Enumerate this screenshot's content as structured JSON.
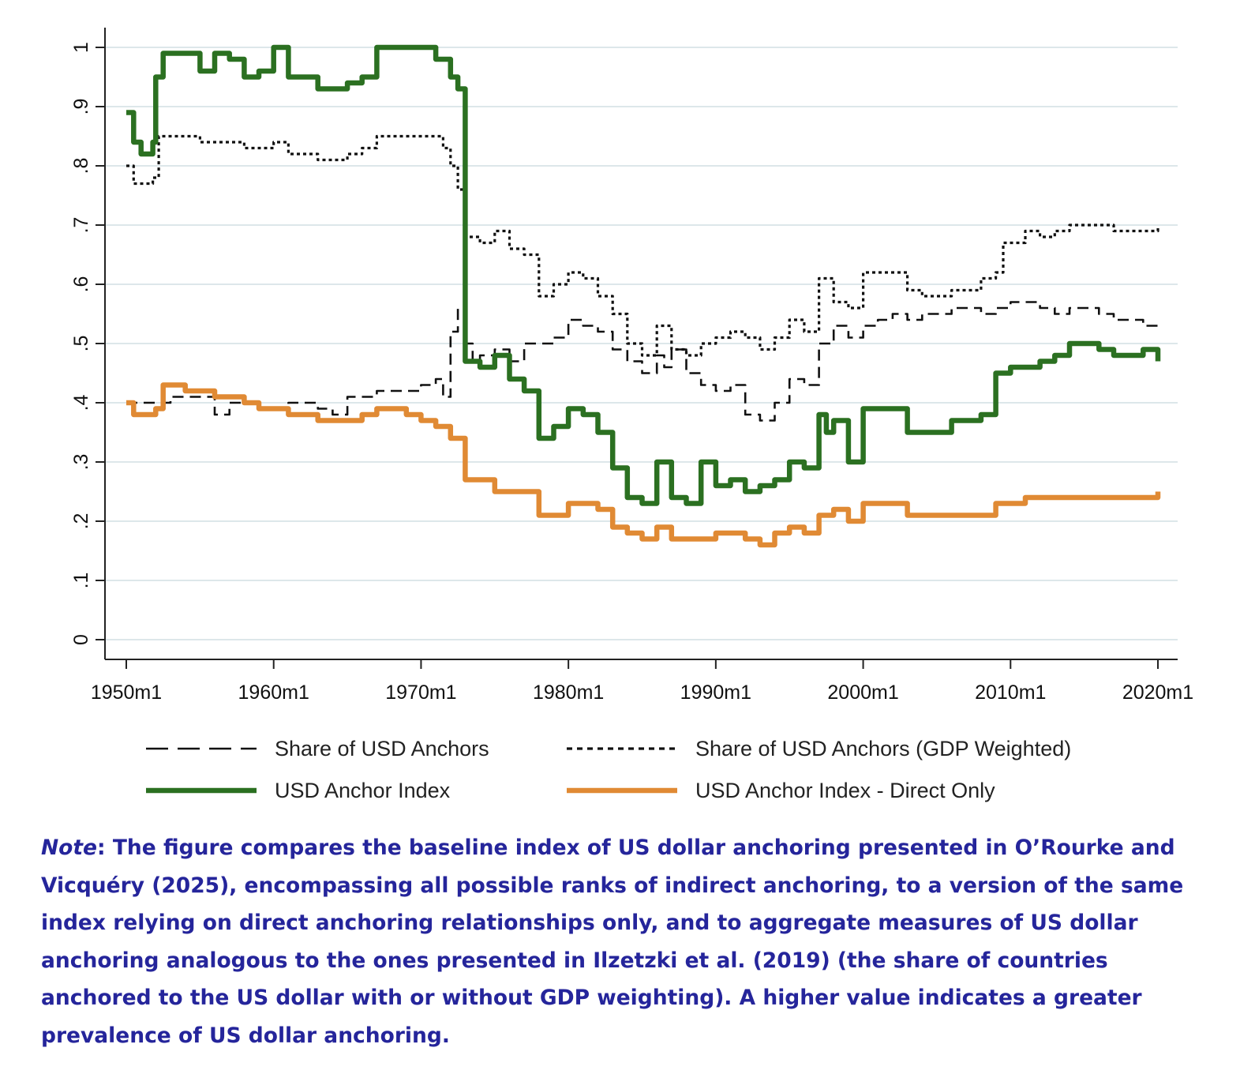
{
  "chart_data": {
    "type": "line",
    "xlim": [
      1950,
      2020
    ],
    "ylim": [
      0,
      1
    ],
    "grid": true,
    "legend_position": "bottom",
    "x_ticks": [
      {
        "value": 1950,
        "label": "1950m1"
      },
      {
        "value": 1960,
        "label": "1960m1"
      },
      {
        "value": 1970,
        "label": "1970m1"
      },
      {
        "value": 1980,
        "label": "1980m1"
      },
      {
        "value": 1990,
        "label": "1990m1"
      },
      {
        "value": 2000,
        "label": "2000m1"
      },
      {
        "value": 2010,
        "label": "2010m1"
      },
      {
        "value": 2020,
        "label": "2020m1"
      }
    ],
    "y_ticks": [
      {
        "value": 0,
        "label": "0"
      },
      {
        "value": 0.1,
        "label": ".1"
      },
      {
        "value": 0.2,
        "label": ".2"
      },
      {
        "value": 0.3,
        "label": ".3"
      },
      {
        "value": 0.4,
        "label": ".4"
      },
      {
        "value": 0.5,
        "label": ".5"
      },
      {
        "value": 0.6,
        "label": ".6"
      },
      {
        "value": 0.7,
        "label": ".7"
      },
      {
        "value": 0.8,
        "label": ".8"
      },
      {
        "value": 0.9,
        "label": ".9"
      },
      {
        "value": 1,
        "label": "1"
      }
    ],
    "series": [
      {
        "name": "Share of USD Anchors",
        "style": "dashed",
        "color": "#111111",
        "points": [
          [
            1950,
            0.4
          ],
          [
            1952,
            0.4
          ],
          [
            1953,
            0.41
          ],
          [
            1955,
            0.41
          ],
          [
            1956,
            0.38
          ],
          [
            1957,
            0.4
          ],
          [
            1959,
            0.39
          ],
          [
            1961,
            0.4
          ],
          [
            1963,
            0.39
          ],
          [
            1964,
            0.38
          ],
          [
            1965,
            0.41
          ],
          [
            1966,
            0.41
          ],
          [
            1967,
            0.42
          ],
          [
            1969,
            0.42
          ],
          [
            1970,
            0.43
          ],
          [
            1971,
            0.44
          ],
          [
            1971.5,
            0.41
          ],
          [
            1972,
            0.52
          ],
          [
            1972.5,
            0.56
          ],
          [
            1973,
            0.5
          ],
          [
            1973.5,
            0.47
          ],
          [
            1974,
            0.48
          ],
          [
            1975,
            0.49
          ],
          [
            1976,
            0.47
          ],
          [
            1977,
            0.5
          ],
          [
            1978,
            0.5
          ],
          [
            1979,
            0.51
          ],
          [
            1980,
            0.54
          ],
          [
            1981,
            0.53
          ],
          [
            1982,
            0.52
          ],
          [
            1983,
            0.49
          ],
          [
            1984,
            0.47
          ],
          [
            1985,
            0.45
          ],
          [
            1986,
            0.48
          ],
          [
            1986.5,
            0.46
          ],
          [
            1987,
            0.49
          ],
          [
            1988,
            0.45
          ],
          [
            1989,
            0.43
          ],
          [
            1990,
            0.42
          ],
          [
            1991,
            0.43
          ],
          [
            1992,
            0.38
          ],
          [
            1993,
            0.37
          ],
          [
            1994,
            0.4
          ],
          [
            1995,
            0.44
          ],
          [
            1996,
            0.43
          ],
          [
            1997,
            0.5
          ],
          [
            1998,
            0.53
          ],
          [
            1999,
            0.51
          ],
          [
            2000,
            0.53
          ],
          [
            2001,
            0.54
          ],
          [
            2002,
            0.55
          ],
          [
            2003,
            0.54
          ],
          [
            2004,
            0.55
          ],
          [
            2006,
            0.56
          ],
          [
            2008,
            0.55
          ],
          [
            2009,
            0.56
          ],
          [
            2010,
            0.57
          ],
          [
            2012,
            0.56
          ],
          [
            2013,
            0.55
          ],
          [
            2014,
            0.56
          ],
          [
            2016,
            0.55
          ],
          [
            2017,
            0.54
          ],
          [
            2019,
            0.53
          ],
          [
            2020,
            0.53
          ]
        ]
      },
      {
        "name": "Share of USD Anchors (GDP Weighted)",
        "style": "dotted",
        "color": "#111111",
        "points": [
          [
            1950,
            0.8
          ],
          [
            1950.5,
            0.77
          ],
          [
            1951.8,
            0.78
          ],
          [
            1952.2,
            0.85
          ],
          [
            1955,
            0.84
          ],
          [
            1957,
            0.84
          ],
          [
            1958,
            0.83
          ],
          [
            1960,
            0.84
          ],
          [
            1961,
            0.82
          ],
          [
            1963,
            0.81
          ],
          [
            1965,
            0.82
          ],
          [
            1966,
            0.83
          ],
          [
            1967,
            0.85
          ],
          [
            1971,
            0.85
          ],
          [
            1971.5,
            0.83
          ],
          [
            1972,
            0.8
          ],
          [
            1972.5,
            0.76
          ],
          [
            1973,
            0.68
          ],
          [
            1974,
            0.67
          ],
          [
            1975,
            0.69
          ],
          [
            1976,
            0.66
          ],
          [
            1977,
            0.65
          ],
          [
            1978,
            0.58
          ],
          [
            1979,
            0.6
          ],
          [
            1980,
            0.62
          ],
          [
            1981,
            0.61
          ],
          [
            1982,
            0.58
          ],
          [
            1983,
            0.55
          ],
          [
            1984,
            0.5
          ],
          [
            1985,
            0.48
          ],
          [
            1986,
            0.53
          ],
          [
            1987,
            0.49
          ],
          [
            1988,
            0.48
          ],
          [
            1989,
            0.5
          ],
          [
            1990,
            0.51
          ],
          [
            1991,
            0.52
          ],
          [
            1992,
            0.51
          ],
          [
            1993,
            0.49
          ],
          [
            1994,
            0.51
          ],
          [
            1995,
            0.54
          ],
          [
            1996,
            0.52
          ],
          [
            1997,
            0.61
          ],
          [
            1998,
            0.57
          ],
          [
            1999,
            0.56
          ],
          [
            2000,
            0.62
          ],
          [
            2002,
            0.62
          ],
          [
            2003,
            0.59
          ],
          [
            2004,
            0.58
          ],
          [
            2006,
            0.59
          ],
          [
            2008,
            0.61
          ],
          [
            2009,
            0.62
          ],
          [
            2009.5,
            0.67
          ],
          [
            2011,
            0.69
          ],
          [
            2012,
            0.68
          ],
          [
            2013,
            0.69
          ],
          [
            2014,
            0.7
          ],
          [
            2016,
            0.7
          ],
          [
            2017,
            0.69
          ],
          [
            2019,
            0.69
          ],
          [
            2020,
            0.7
          ]
        ]
      },
      {
        "name": "USD Anchor Index",
        "style": "solid-thick",
        "color": "#2b7021",
        "points": [
          [
            1950,
            0.89
          ],
          [
            1950.5,
            0.84
          ],
          [
            1951,
            0.82
          ],
          [
            1951.8,
            0.84
          ],
          [
            1952,
            0.95
          ],
          [
            1952.5,
            0.99
          ],
          [
            1955,
            0.96
          ],
          [
            1956,
            0.99
          ],
          [
            1957,
            0.98
          ],
          [
            1958,
            0.95
          ],
          [
            1959,
            0.96
          ],
          [
            1960,
            1.0
          ],
          [
            1961,
            0.95
          ],
          [
            1962,
            0.95
          ],
          [
            1963,
            0.93
          ],
          [
            1964,
            0.93
          ],
          [
            1965,
            0.94
          ],
          [
            1966,
            0.95
          ],
          [
            1967,
            1.0
          ],
          [
            1968,
            1.0
          ],
          [
            1970,
            1.0
          ],
          [
            1971,
            0.98
          ],
          [
            1972,
            0.95
          ],
          [
            1972.5,
            0.93
          ],
          [
            1973,
            0.47
          ],
          [
            1974,
            0.46
          ],
          [
            1975,
            0.48
          ],
          [
            1976,
            0.44
          ],
          [
            1977,
            0.42
          ],
          [
            1978,
            0.34
          ],
          [
            1979,
            0.36
          ],
          [
            1980,
            0.39
          ],
          [
            1981,
            0.38
          ],
          [
            1982,
            0.35
          ],
          [
            1983,
            0.29
          ],
          [
            1984,
            0.24
          ],
          [
            1985,
            0.23
          ],
          [
            1986,
            0.3
          ],
          [
            1987,
            0.24
          ],
          [
            1988,
            0.23
          ],
          [
            1989,
            0.3
          ],
          [
            1990,
            0.26
          ],
          [
            1991,
            0.27
          ],
          [
            1992,
            0.25
          ],
          [
            1993,
            0.26
          ],
          [
            1994,
            0.27
          ],
          [
            1995,
            0.3
          ],
          [
            1996,
            0.29
          ],
          [
            1997,
            0.38
          ],
          [
            1997.5,
            0.35
          ],
          [
            1998,
            0.37
          ],
          [
            1999,
            0.3
          ],
          [
            2000,
            0.39
          ],
          [
            2002,
            0.39
          ],
          [
            2003,
            0.35
          ],
          [
            2004,
            0.35
          ],
          [
            2006,
            0.37
          ],
          [
            2008,
            0.38
          ],
          [
            2009,
            0.45
          ],
          [
            2010,
            0.46
          ],
          [
            2012,
            0.47
          ],
          [
            2013,
            0.48
          ],
          [
            2014,
            0.5
          ],
          [
            2016,
            0.49
          ],
          [
            2017,
            0.48
          ],
          [
            2019,
            0.49
          ],
          [
            2020,
            0.47
          ]
        ]
      },
      {
        "name": "USD Anchor Index - Direct Only",
        "style": "solid-thick",
        "color": "#e08a34",
        "points": [
          [
            1950,
            0.4
          ],
          [
            1950.5,
            0.38
          ],
          [
            1952,
            0.39
          ],
          [
            1952.5,
            0.43
          ],
          [
            1954,
            0.42
          ],
          [
            1956,
            0.41
          ],
          [
            1958,
            0.4
          ],
          [
            1959,
            0.39
          ],
          [
            1961,
            0.38
          ],
          [
            1963,
            0.37
          ],
          [
            1965,
            0.37
          ],
          [
            1966,
            0.38
          ],
          [
            1967,
            0.39
          ],
          [
            1969,
            0.38
          ],
          [
            1970,
            0.37
          ],
          [
            1971,
            0.36
          ],
          [
            1972,
            0.34
          ],
          [
            1973,
            0.27
          ],
          [
            1975,
            0.25
          ],
          [
            1977,
            0.25
          ],
          [
            1978,
            0.21
          ],
          [
            1980,
            0.23
          ],
          [
            1982,
            0.22
          ],
          [
            1983,
            0.19
          ],
          [
            1984,
            0.18
          ],
          [
            1985,
            0.17
          ],
          [
            1986,
            0.19
          ],
          [
            1987,
            0.17
          ],
          [
            1989,
            0.17
          ],
          [
            1990,
            0.18
          ],
          [
            1992,
            0.17
          ],
          [
            1993,
            0.16
          ],
          [
            1994,
            0.18
          ],
          [
            1995,
            0.19
          ],
          [
            1996,
            0.18
          ],
          [
            1997,
            0.21
          ],
          [
            1998,
            0.22
          ],
          [
            1999,
            0.2
          ],
          [
            2000,
            0.23
          ],
          [
            2002,
            0.23
          ],
          [
            2003,
            0.21
          ],
          [
            2006,
            0.21
          ],
          [
            2008,
            0.21
          ],
          [
            2009,
            0.23
          ],
          [
            2011,
            0.24
          ],
          [
            2013,
            0.24
          ],
          [
            2016,
            0.24
          ],
          [
            2018,
            0.24
          ],
          [
            2020,
            0.25
          ]
        ]
      }
    ]
  },
  "note": {
    "label": "Note",
    "text": ": The figure compares the baseline index of US dollar anchoring presented in O’Rourke and Vicquéry (2025), encompassing all possible ranks of indirect anchoring, to a version of the same index relying on direct anchoring relationships only, and to aggregate measures of US dollar anchoring analogous to the ones presented in Ilzetzki et al. (2019) (the share of countries anchored to the US dollar with or without GDP weighting). A higher value indicates a greater prevalence of US dollar anchoring."
  }
}
